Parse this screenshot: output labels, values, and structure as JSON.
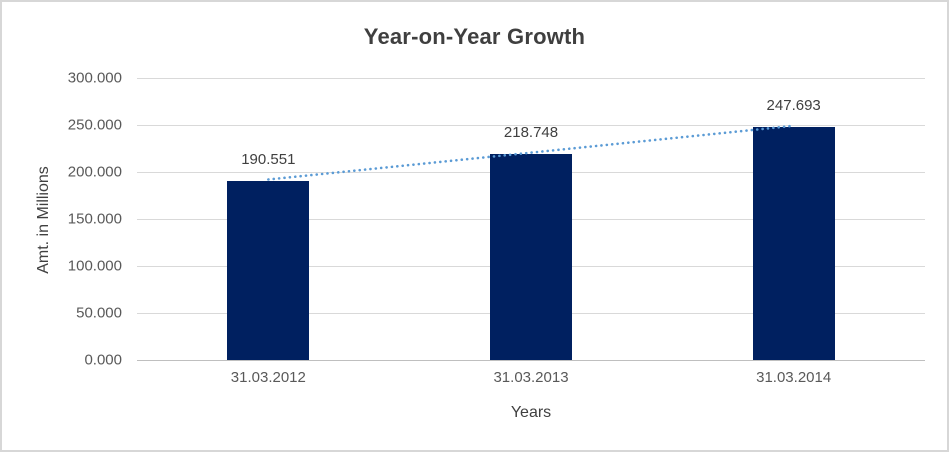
{
  "chart_data": {
    "type": "bar",
    "title": "Year-on-Year Growth",
    "xlabel": "Years",
    "ylabel": "Amt. in Millions",
    "categories": [
      "31.03.2012",
      "31.03.2013",
      "31.03.2014"
    ],
    "values": [
      190.551,
      218.748,
      247.693
    ],
    "value_labels": [
      "190.551",
      "218.748",
      "247.693"
    ],
    "ylim": [
      0,
      300
    ],
    "yticks": [
      0,
      50,
      100,
      150,
      200,
      250,
      300
    ],
    "ytick_labels": [
      "0.000",
      "50.000",
      "100.000",
      "150.000",
      "200.000",
      "250.000",
      "300.000"
    ],
    "grid": true,
    "legend": "none",
    "trendline": {
      "type": "linear",
      "style": "dotted"
    },
    "colors": {
      "bar": "#002060",
      "trendline": "#5b9bd5",
      "gridline": "#d9d9d9",
      "axis_line": "#bfbfbf",
      "title_text": "#3f3f3f",
      "tick_text": "#595959",
      "label_text": "#404040",
      "border": "#d7d7d7",
      "background": "#ffffff"
    }
  }
}
